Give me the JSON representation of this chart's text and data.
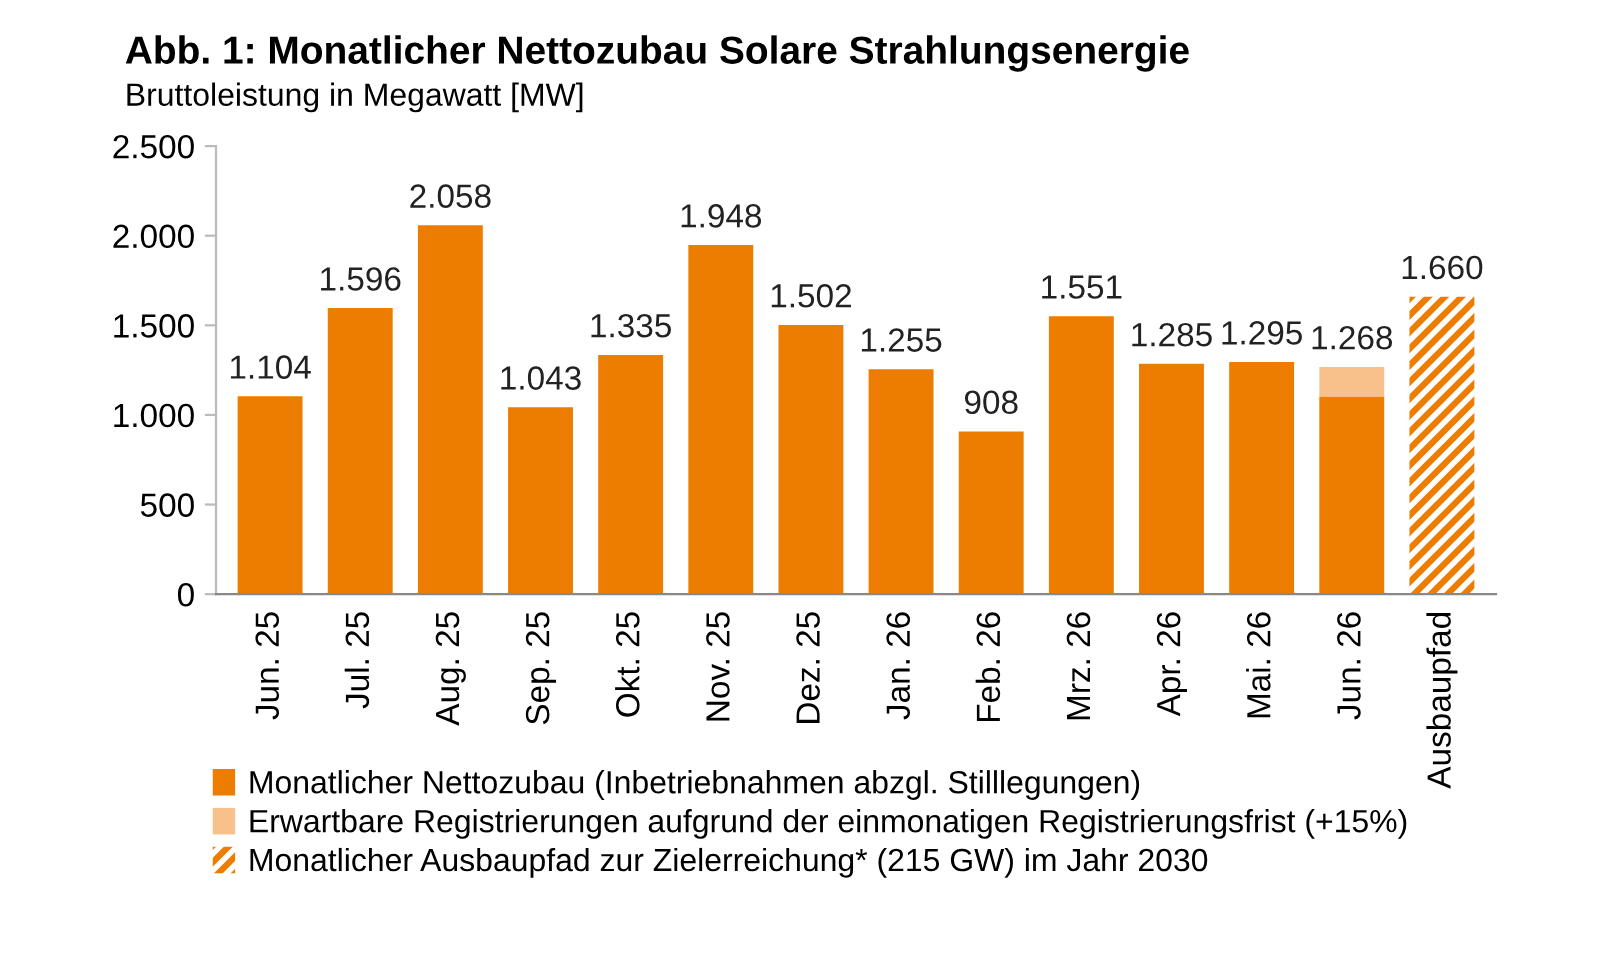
{
  "chart_data": {
    "type": "bar",
    "title": "Abb. 1: Monatlicher Nettozubau Solare Strahlungsenergie",
    "subtitle": "Bruttoleistung in Megawatt [MW]",
    "categories": [
      "Jun. 25",
      "Jul. 25",
      "Aug. 25",
      "Sep. 25",
      "Okt. 25",
      "Nov. 25",
      "Dez. 25",
      "Jan. 26",
      "Feb. 26",
      "Mrz. 26",
      "Apr. 26",
      "Mai. 26",
      "Jun. 26",
      "Ausbaupfad"
    ],
    "stacked": true,
    "series": [
      {
        "name": "Monatlicher Nettozubau (Inbetriebnahmen abzgl. Stilllegungen)",
        "color": "#ed7d00",
        "values": [
          1104,
          1596,
          2058,
          1043,
          1335,
          1948,
          1502,
          1255,
          908,
          1551,
          1285,
          1295,
          1103,
          null
        ]
      },
      {
        "name": "Erwartbare Registrierungen aufgrund der einmonatigen Registrierungsfrist (+15%)",
        "color": "#f8c08a",
        "values": [
          null,
          null,
          null,
          null,
          null,
          null,
          null,
          null,
          null,
          null,
          null,
          null,
          165,
          null
        ]
      },
      {
        "name": "Monatlicher Ausbaupfad zur Zielerreichung* (215 GW) im Jahr 2030",
        "color": "#ed7d00",
        "values": [
          null,
          null,
          null,
          null,
          null,
          null,
          null,
          null,
          null,
          null,
          null,
          null,
          null,
          1660
        ]
      }
    ],
    "totals": [
      "1.104",
      "1.596",
      "2.058",
      "1.043",
      "1.335",
      "1.948",
      "1.502",
      "1.255",
      "908",
      "1.551",
      "1.285",
      "1.295",
      "1.268",
      "1.660"
    ],
    "ylim": [
      0,
      2500
    ],
    "yticks": [
      {
        "value": 0,
        "label": "0"
      },
      {
        "value": 500,
        "label": "500"
      },
      {
        "value": 1000,
        "label": "1.000"
      },
      {
        "value": 1500,
        "label": "1.500"
      },
      {
        "value": 2000,
        "label": "2.000"
      },
      {
        "value": 2500,
        "label": "2.500"
      }
    ],
    "grid": false,
    "legend": "bottom"
  }
}
